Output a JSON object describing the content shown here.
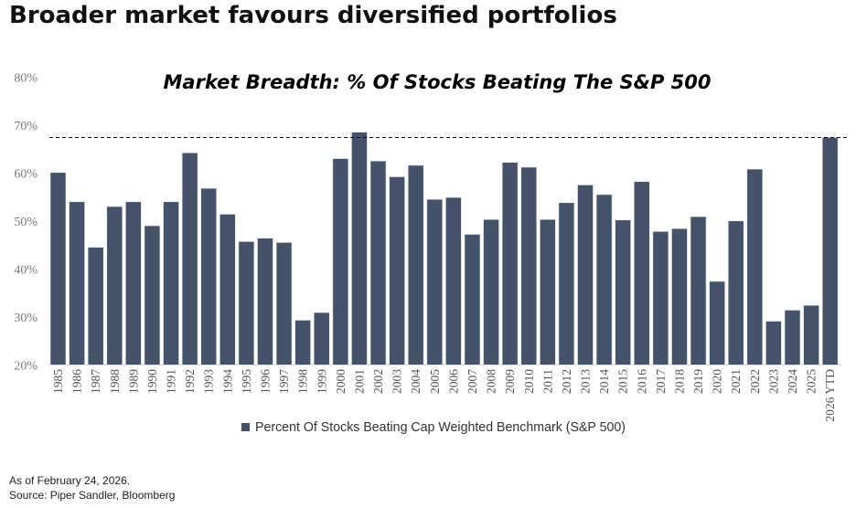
{
  "page": {
    "heading": "Broader market favours diversified portfolios",
    "footnote": "As of February 24, 2026.",
    "source": "Source: Piper Sandler, Bloomberg"
  },
  "chart_data": {
    "type": "bar",
    "title": "Market Breadth: % Of Stocks Beating The S&P 500",
    "xlabel": "",
    "ylabel": "",
    "ylim": [
      20,
      80
    ],
    "yticks": [
      "20%",
      "30%",
      "40%",
      "50%",
      "60%",
      "70%",
      "80%"
    ],
    "ytick_values": [
      20,
      30,
      40,
      50,
      60,
      70,
      80
    ],
    "grid": false,
    "legend_position": "bottom",
    "bar_color": "#44536a",
    "reference_line": {
      "value": 67.4,
      "style": "dashed",
      "color": "#000000"
    },
    "categories": [
      "1985",
      "1986",
      "1987",
      "1988",
      "1989",
      "1990",
      "1991",
      "1992",
      "1993",
      "1994",
      "1995",
      "1996",
      "1997",
      "1998",
      "1999",
      "2000",
      "2001",
      "2002",
      "2003",
      "2004",
      "2005",
      "2006",
      "2007",
      "2008",
      "2009",
      "2010",
      "2011",
      "2012",
      "2013",
      "2014",
      "2015",
      "2016",
      "2017",
      "2018",
      "2019",
      "2020",
      "2021",
      "2022",
      "2023",
      "2024",
      "2025",
      "2026 YTD"
    ],
    "series": [
      {
        "name": "Percent Of Stocks Beating Cap Weighted Benchmark (S&P 500)",
        "values": [
          60.1,
          54.0,
          44.5,
          53.0,
          54.0,
          49.0,
          54.0,
          64.2,
          56.8,
          51.4,
          45.7,
          46.4,
          45.5,
          29.3,
          30.9,
          63.0,
          68.5,
          62.5,
          59.2,
          61.6,
          54.5,
          54.9,
          47.2,
          50.3,
          62.2,
          61.2,
          50.3,
          53.8,
          57.5,
          55.5,
          50.2,
          58.2,
          47.8,
          48.4,
          50.9,
          37.4,
          50.0,
          60.8,
          29.1,
          31.4,
          32.4,
          67.4
        ]
      }
    ]
  }
}
